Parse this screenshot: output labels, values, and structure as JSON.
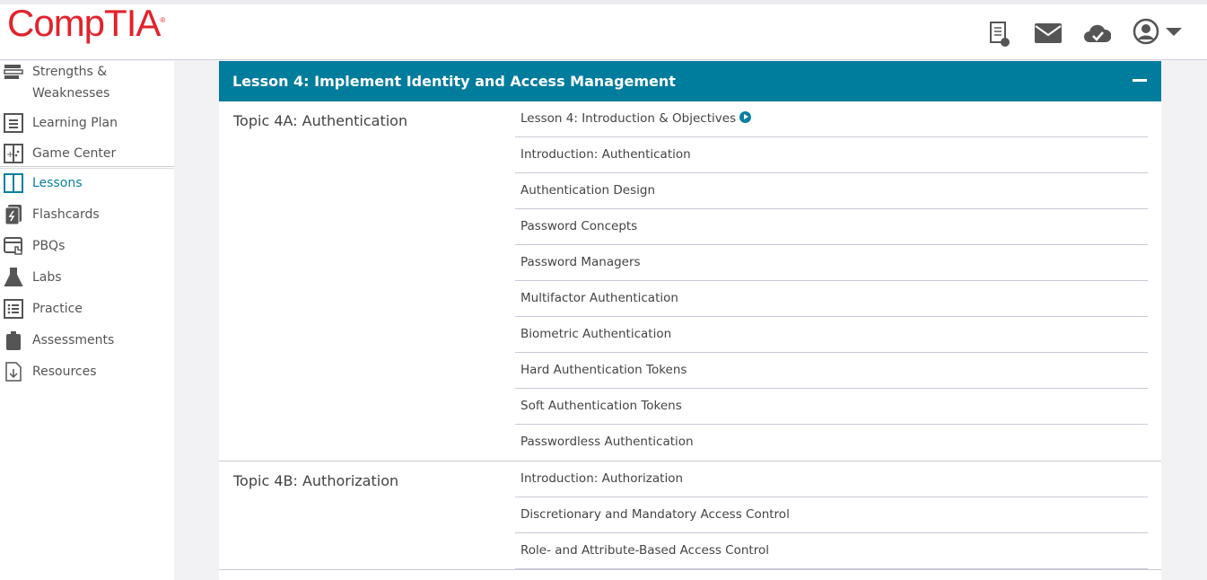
{
  "brand": {
    "logo": "CompTIA"
  },
  "colors": {
    "accent": "#007c9c",
    "brand": "#e3222b"
  },
  "header_icons": [
    "certificate-icon",
    "mail-icon",
    "cloud-check-icon",
    "user-avatar-icon",
    "caret-down-icon"
  ],
  "sidebar": {
    "items": [
      {
        "label": "Strengths & Weaknesses",
        "icon": "bars-icon"
      },
      {
        "label": "Learning Plan",
        "icon": "list-icon"
      },
      {
        "label": "Game Center",
        "icon": "game-icon"
      },
      {
        "label": "Lessons",
        "icon": "book-icon",
        "active": true
      },
      {
        "label": "Flashcards",
        "icon": "flashcard-icon"
      },
      {
        "label": "PBQs",
        "icon": "pbq-icon"
      },
      {
        "label": "Labs",
        "icon": "flask-icon"
      },
      {
        "label": "Practice",
        "icon": "checklist-icon"
      },
      {
        "label": "Assessments",
        "icon": "clipboard-icon"
      },
      {
        "label": "Resources",
        "icon": "download-doc-icon"
      }
    ]
  },
  "lesson": {
    "title": "Lesson 4: Implement Identity and Access Management",
    "topics": [
      {
        "name": "Topic 4A: Authentication",
        "items": [
          "Lesson 4: Introduction & Objectives",
          "Introduction: Authentication",
          "Authentication Design",
          "Password Concepts",
          "Password Managers",
          "Multifactor Authentication",
          "Biometric Authentication",
          "Hard Authentication Tokens",
          "Soft Authentication Tokens",
          "Passwordless Authentication"
        ]
      },
      {
        "name": "Topic 4B: Authorization",
        "items": [
          "Introduction: Authorization",
          "Discretionary and Mandatory Access Control",
          "Role- and Attribute-Based Access Control"
        ]
      }
    ]
  }
}
